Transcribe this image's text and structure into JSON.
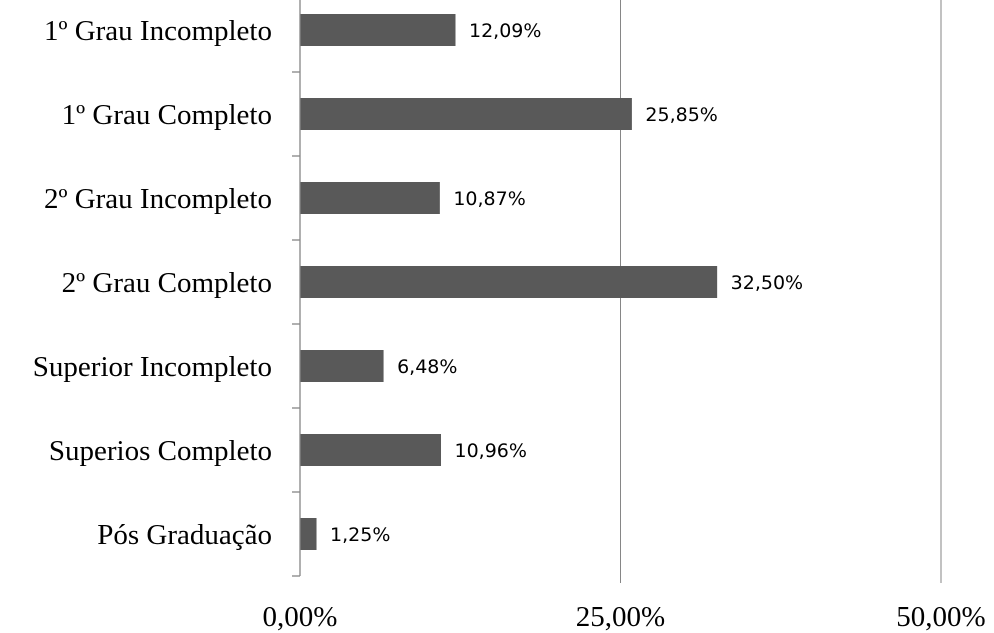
{
  "chart_data": {
    "type": "bar",
    "orientation": "horizontal",
    "categories": [
      "1º Grau Incompleto",
      "1º Grau Completo",
      "2º Grau Incompleto",
      "2º Grau Completo",
      "Superior Incompleto",
      "Superios Completo",
      "Pós Graduação"
    ],
    "values": [
      12.09,
      25.85,
      10.87,
      32.5,
      6.48,
      10.96,
      1.25
    ],
    "data_labels": [
      "12,09%",
      "25,85%",
      "10,87%",
      "32,50%",
      "6,48%",
      "10,96%",
      "1,25%"
    ],
    "x_ticks": [
      "0,00%",
      "25,00%",
      "50,00%"
    ],
    "x_tick_values": [
      0,
      25,
      50
    ],
    "xlim": [
      0,
      50
    ],
    "grid": true,
    "legend": false,
    "bar_color": "#595959",
    "axis_color": "#868686"
  }
}
